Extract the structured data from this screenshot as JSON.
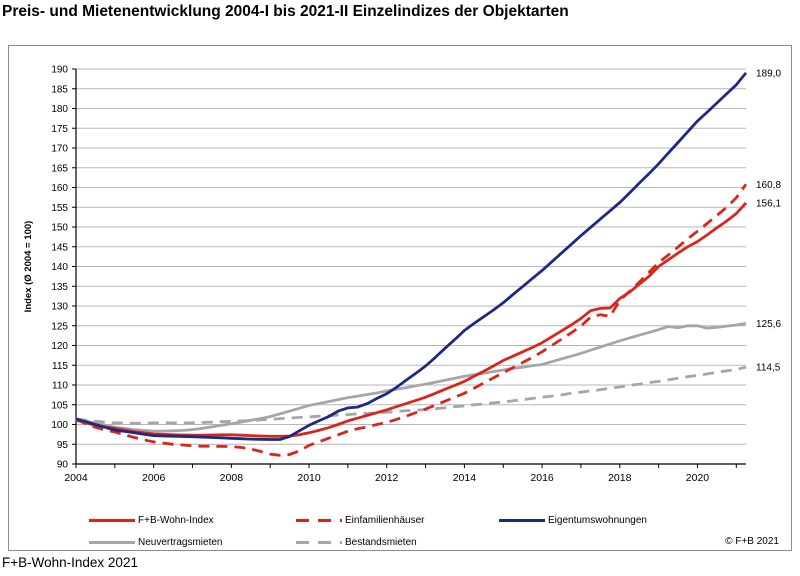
{
  "page": {
    "title": "Preis- und Mietenentwicklung 2004-I bis 2021-II Einzelindizes der Objektarten",
    "footer": "F+B-Wohn-Index 2021",
    "copyright": "© F+B 2021"
  },
  "chart_data": {
    "type": "line",
    "title": "Preis- und Mietenentwicklung 2004-I bis 2021-II Einzelindizes der Objektarten",
    "xlabel": "",
    "ylabel": "Index (Ø 2004 = 100)",
    "ylim": [
      90,
      190
    ],
    "ytick_step": 5,
    "x_start_year": 2004,
    "x_end_label": "2021-II",
    "points_per_year": 4,
    "n_points": 70,
    "x_tick_label_years": [
      2004,
      2006,
      2008,
      2010,
      2012,
      2014,
      2016,
      2018,
      2020
    ],
    "x_minor_tick_years": [
      2004,
      2005,
      2006,
      2007,
      2008,
      2009,
      2010,
      2011,
      2012,
      2013,
      2014,
      2015,
      2016,
      2017,
      2018,
      2019,
      2020,
      2021
    ],
    "grid": true,
    "legend_position": "bottom",
    "colors": {
      "red": "#d9261c",
      "blue": "#1c2a84",
      "gray": "#a6a6a6",
      "gridline": "#b7b7b7",
      "axis": "#000000"
    },
    "draw_order": [
      4,
      3,
      1,
      0,
      2
    ],
    "series": [
      {
        "name": "F+B-Wohn-Index",
        "color": "#d9261c",
        "dash": "solid",
        "end_label": "156,1",
        "end_value": 156.1,
        "values": [
          101.1,
          100.4,
          99.8,
          99.4,
          99.0,
          98.6,
          98.2,
          97.9,
          97.6,
          97.5,
          97.4,
          97.35,
          97.3,
          97.3,
          97.35,
          97.4,
          97.4,
          97.3,
          97.2,
          97.1,
          97.0,
          97.0,
          97.1,
          97.4,
          97.9,
          98.5,
          99.2,
          100.0,
          100.9,
          101.6,
          102.3,
          103.0,
          103.7,
          104.5,
          105.3,
          106.1,
          106.9,
          107.9,
          108.9,
          109.9,
          110.9,
          112.2,
          113.5,
          114.8,
          116.2,
          117.3,
          118.4,
          119.5,
          120.7,
          122.2,
          123.7,
          125.2,
          126.8,
          128.8,
          129.4,
          129.5,
          131.9,
          133.5,
          135.5,
          137.5,
          140.0,
          141.7,
          143.4,
          145.0,
          146.3,
          148.0,
          149.8,
          151.5,
          153.4,
          156.1
        ]
      },
      {
        "name": "Einfamilienhäuser",
        "color": "#d9261c",
        "dash": "dashed",
        "end_label": "160,8",
        "end_value": 160.8,
        "values": [
          101.3,
          100.2,
          99.3,
          98.6,
          98.1,
          97.4,
          96.7,
          96.1,
          95.6,
          95.3,
          95.0,
          94.8,
          94.6,
          94.5,
          94.5,
          94.45,
          94.4,
          94.2,
          93.8,
          93.2,
          92.5,
          92.2,
          92.4,
          93.3,
          94.7,
          95.6,
          96.5,
          97.4,
          98.3,
          98.9,
          99.4,
          100.0,
          100.5,
          101.3,
          102.1,
          103.0,
          103.9,
          104.9,
          105.9,
          106.9,
          107.9,
          109.2,
          110.5,
          111.8,
          113.1,
          114.4,
          115.7,
          117.0,
          118.4,
          120.0,
          121.6,
          123.2,
          124.9,
          127.2,
          127.8,
          127.4,
          131.4,
          133.7,
          136.0,
          138.5,
          141.0,
          142.9,
          144.9,
          147.0,
          148.9,
          150.9,
          152.9,
          155.0,
          157.4,
          160.8
        ]
      },
      {
        "name": "Eigentumswohnungen",
        "color": "#1c2a84",
        "dash": "solid",
        "end_label": "189,0",
        "end_value": 189.0,
        "values": [
          101.4,
          100.7,
          100.0,
          99.3,
          98.6,
          98.25,
          97.9,
          97.55,
          97.2,
          97.1,
          97.05,
          96.95,
          96.9,
          96.8,
          96.7,
          96.6,
          96.5,
          96.4,
          96.3,
          96.25,
          96.2,
          96.2,
          97.0,
          98.4,
          99.8,
          100.9,
          102.0,
          103.4,
          104.2,
          104.4,
          105.3,
          106.6,
          107.8,
          109.4,
          111.2,
          113.0,
          114.8,
          117.0,
          119.3,
          121.5,
          123.8,
          125.6,
          127.3,
          129.0,
          130.8,
          132.9,
          134.9,
          137.0,
          139.0,
          141.2,
          143.4,
          145.6,
          147.8,
          149.9,
          152.0,
          154.1,
          156.2,
          158.6,
          161.1,
          163.5,
          166.0,
          168.7,
          171.4,
          174.1,
          176.8,
          179.1,
          181.4,
          183.7,
          186.0,
          189.0
        ]
      },
      {
        "name": "Neuvertragsmieten",
        "color": "#a6a6a6",
        "dash": "solid",
        "end_label": "125,6",
        "end_value": 125.6,
        "values": [
          101.5,
          100.9,
          100.3,
          99.8,
          99.3,
          99.0,
          98.7,
          98.5,
          98.3,
          98.3,
          98.4,
          98.5,
          98.7,
          99.0,
          99.4,
          99.8,
          100.2,
          100.6,
          101.1,
          101.5,
          102.0,
          102.7,
          103.4,
          104.1,
          104.8,
          105.3,
          105.8,
          106.3,
          106.8,
          107.2,
          107.6,
          108.0,
          108.5,
          108.9,
          109.3,
          109.8,
          110.2,
          110.7,
          111.2,
          111.7,
          112.2,
          112.6,
          113.0,
          113.4,
          113.8,
          114.2,
          114.5,
          114.9,
          115.2,
          115.9,
          116.6,
          117.3,
          118.0,
          118.8,
          119.6,
          120.4,
          121.2,
          121.9,
          122.6,
          123.3,
          124.0,
          124.8,
          124.5,
          125.0,
          125.0,
          124.4,
          124.6,
          124.9,
          125.2,
          125.6
        ]
      },
      {
        "name": "Bestandsmieten",
        "color": "#a6a6a6",
        "dash": "dashed",
        "end_label": "114,5",
        "end_value": 114.5,
        "values": [
          101.4,
          101.1,
          100.8,
          100.6,
          100.4,
          100.4,
          100.3,
          100.3,
          100.4,
          100.4,
          100.4,
          100.4,
          100.4,
          100.5,
          100.6,
          100.7,
          100.8,
          100.9,
          101.0,
          101.2,
          101.3,
          101.5,
          101.6,
          101.8,
          101.9,
          102.1,
          102.2,
          102.4,
          102.5,
          102.7,
          102.8,
          103.0,
          103.1,
          103.3,
          103.5,
          103.6,
          103.8,
          104.0,
          104.2,
          104.5,
          104.7,
          105.0,
          105.2,
          105.5,
          105.7,
          106.0,
          106.3,
          106.6,
          106.9,
          107.2,
          107.5,
          107.9,
          108.2,
          108.5,
          108.8,
          109.2,
          109.5,
          109.9,
          110.2,
          110.6,
          110.9,
          111.3,
          111.7,
          112.1,
          112.4,
          112.8,
          113.2,
          113.6,
          113.9,
          114.5
        ]
      }
    ]
  }
}
